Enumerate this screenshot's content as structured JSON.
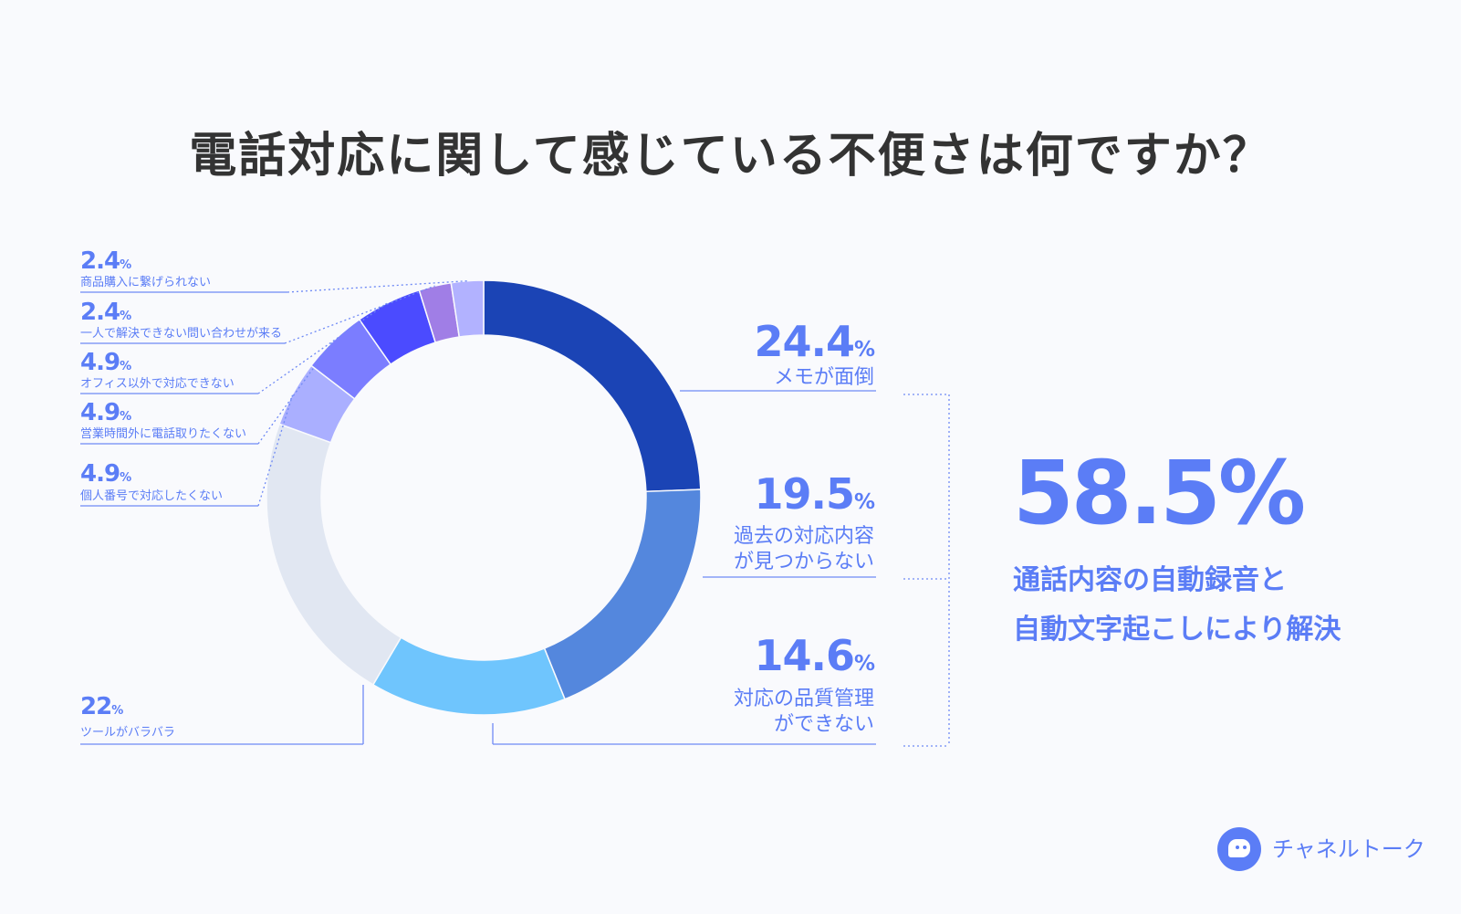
{
  "title": "電話対応に関して感じている不便さは何ですか？",
  "chart_data": {
    "type": "pie",
    "title": "電話対応に関して感じている不便さは何ですか？",
    "unit": "%",
    "slices": [
      {
        "label": "メモが面倒",
        "value": 24.4,
        "color": "#1b44b5"
      },
      {
        "label": "過去の対応内容が見つからない",
        "label_lines": [
          "過去の対応内容",
          "が見つからない"
        ],
        "value": 19.5,
        "color": "#5487dd"
      },
      {
        "label": "対応の品質管理ができない",
        "label_lines": [
          "対応の品質管理",
          "ができない"
        ],
        "value": 14.6,
        "color": "#6fc5fd"
      },
      {
        "label": "ツールがバラバラ",
        "value": 22,
        "color": "#e1e7f2"
      },
      {
        "label": "個人番号で対応したくない",
        "value": 4.9,
        "color": "#aaafff"
      },
      {
        "label": "営業時間外に電話取りたくない",
        "value": 4.9,
        "color": "#7b7dff"
      },
      {
        "label": "オフィス以外で対応できない",
        "value": 4.9,
        "color": "#4b4bff"
      },
      {
        "label": "一人で解決できない問い合わせが来る",
        "value": 2.4,
        "color": "#a07ee6"
      },
      {
        "label": "商品購入に繋げられない",
        "value": 2.4,
        "color": "#b2b2ff"
      }
    ],
    "legend": "none"
  },
  "summary": {
    "value": "58.5%",
    "line1": "通話内容の自動録音と",
    "line2": "自動文字起こしにより解決"
  },
  "brand": {
    "name": "チャネルトーク"
  },
  "colors": {
    "accent": "#5b7df6",
    "leader_line": "#6f8af5",
    "title_text": "#333333",
    "background": "#f9fafd"
  }
}
